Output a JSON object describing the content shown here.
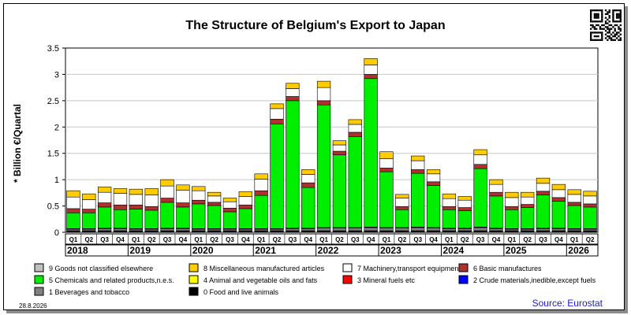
{
  "chart_data": {
    "type": "bar",
    "stacked": true,
    "title": "The Structure of Belgium's Export to Japan",
    "ylabel": "* Billion €/Quartal",
    "ylim": [
      0,
      3.5
    ],
    "yticks": [
      "0",
      "0.5",
      "1",
      "1.5",
      "2",
      "2.5",
      "3",
      "3.5"
    ],
    "grid": true,
    "legend_position": "bottom",
    "quarters": [
      "Q1",
      "Q2",
      "Q3",
      "Q4",
      "Q1",
      "Q2",
      "Q3",
      "Q4",
      "Q1",
      "Q2",
      "Q3",
      "Q4",
      "Q1",
      "Q2",
      "Q3",
      "Q4",
      "Q1",
      "Q2",
      "Q3",
      "Q4",
      "Q1",
      "Q2",
      "Q3",
      "Q4",
      "Q1",
      "Q2",
      "Q3",
      "Q4",
      "Q1",
      "Q2",
      "Q3",
      "Q4",
      "Q1",
      "Q2"
    ],
    "years": [
      "2018",
      "2019",
      "2020",
      "2021",
      "2022",
      "2023",
      "2024",
      "2025",
      "2026"
    ],
    "series": [
      {
        "name": "0 Food and live animals",
        "color": "#000000",
        "values": [
          0.03,
          0.03,
          0.03,
          0.03,
          0.03,
          0.03,
          0.03,
          0.03,
          0.03,
          0.03,
          0.03,
          0.03,
          0.03,
          0.03,
          0.03,
          0.03,
          0.03,
          0.03,
          0.03,
          0.03,
          0.03,
          0.03,
          0.03,
          0.03,
          0.03,
          0.03,
          0.03,
          0.03,
          0.03,
          0.03,
          0.03,
          0.03,
          0.03,
          0.03
        ]
      },
      {
        "name": "1 Beverages and tobacco",
        "color": "#808080",
        "values": [
          0.03,
          0.03,
          0.04,
          0.04,
          0.03,
          0.03,
          0.04,
          0.04,
          0.03,
          0.03,
          0.03,
          0.03,
          0.03,
          0.03,
          0.04,
          0.04,
          0.05,
          0.05,
          0.05,
          0.06,
          0.05,
          0.05,
          0.06,
          0.05,
          0.04,
          0.04,
          0.06,
          0.04,
          0.03,
          0.03,
          0.04,
          0.04,
          0.03,
          0.03
        ]
      },
      {
        "name": "2 Crude materials,inedible,except fuels",
        "color": "#0000ff",
        "values": [
          0.01,
          0.01,
          0.01,
          0.01,
          0.01,
          0.01,
          0.01,
          0.01,
          0.01,
          0.01,
          0.01,
          0.01,
          0.01,
          0.01,
          0.01,
          0.01,
          0.01,
          0.01,
          0.01,
          0.01,
          0.01,
          0.01,
          0.01,
          0.01,
          0.01,
          0.01,
          0.01,
          0.01,
          0.01,
          0.01,
          0.01,
          0.01,
          0.01,
          0.01
        ]
      },
      {
        "name": "3 Mineral fuels etc",
        "color": "#ff0000",
        "values": [
          0.0,
          0.0,
          0.0,
          0.0,
          0.0,
          0.0,
          0.0,
          0.0,
          0.0,
          0.0,
          0.0,
          0.0,
          0.0,
          0.0,
          0.0,
          0.0,
          0.0,
          0.0,
          0.0,
          0.0,
          0.0,
          0.0,
          0.0,
          0.0,
          0.0,
          0.0,
          0.0,
          0.0,
          0.0,
          0.0,
          0.0,
          0.0,
          0.0,
          0.0
        ]
      },
      {
        "name": "4 Animal and vegetable oils and fats",
        "color": "#ffff00",
        "values": [
          0.0,
          0.0,
          0.0,
          0.0,
          0.0,
          0.0,
          0.0,
          0.0,
          0.0,
          0.0,
          0.0,
          0.0,
          0.0,
          0.0,
          0.0,
          0.0,
          0.0,
          0.0,
          0.0,
          0.0,
          0.0,
          0.0,
          0.0,
          0.0,
          0.0,
          0.0,
          0.0,
          0.0,
          0.0,
          0.0,
          0.0,
          0.0,
          0.0,
          0.0
        ]
      },
      {
        "name": "5 Chemicals and related products,n.e.s.",
        "color": "#00ee00",
        "values": [
          0.3,
          0.3,
          0.4,
          0.35,
          0.37,
          0.35,
          0.49,
          0.4,
          0.47,
          0.44,
          0.32,
          0.38,
          0.63,
          1.99,
          2.42,
          0.77,
          2.33,
          1.38,
          1.73,
          2.82,
          1.06,
          0.34,
          1.02,
          0.8,
          0.35,
          0.33,
          1.11,
          0.61,
          0.36,
          0.4,
          0.63,
          0.51,
          0.44,
          0.41
        ]
      },
      {
        "name": "6 Basic manufactures",
        "color": "#b03030",
        "values": [
          0.08,
          0.07,
          0.08,
          0.09,
          0.08,
          0.07,
          0.08,
          0.08,
          0.07,
          0.06,
          0.07,
          0.07,
          0.09,
          0.09,
          0.08,
          0.09,
          0.08,
          0.07,
          0.08,
          0.08,
          0.07,
          0.06,
          0.07,
          0.07,
          0.06,
          0.06,
          0.08,
          0.07,
          0.06,
          0.06,
          0.07,
          0.07,
          0.06,
          0.06
        ]
      },
      {
        "name": "7 Machinery,transport equipment",
        "color": "#ffffff",
        "values": [
          0.22,
          0.18,
          0.2,
          0.22,
          0.2,
          0.22,
          0.23,
          0.24,
          0.18,
          0.12,
          0.12,
          0.16,
          0.22,
          0.2,
          0.15,
          0.16,
          0.25,
          0.12,
          0.15,
          0.18,
          0.18,
          0.16,
          0.17,
          0.15,
          0.15,
          0.14,
          0.18,
          0.15,
          0.17,
          0.14,
          0.15,
          0.15,
          0.15,
          0.15
        ]
      },
      {
        "name": "8 Miscellaneous manufactured articles",
        "color": "#ffcc00",
        "values": [
          0.12,
          0.11,
          0.1,
          0.09,
          0.1,
          0.12,
          0.12,
          0.1,
          0.08,
          0.07,
          0.07,
          0.09,
          0.1,
          0.09,
          0.1,
          0.09,
          0.12,
          0.08,
          0.09,
          0.12,
          0.13,
          0.07,
          0.09,
          0.08,
          0.09,
          0.07,
          0.1,
          0.09,
          0.1,
          0.09,
          0.1,
          0.1,
          0.09,
          0.09
        ]
      },
      {
        "name": "9 Goods not classified elsewhere",
        "color": "#c0c0c0",
        "values": [
          0.0,
          0.0,
          0.0,
          0.0,
          0.0,
          0.0,
          0.0,
          0.0,
          0.0,
          0.0,
          0.0,
          0.0,
          0.0,
          0.0,
          0.0,
          0.0,
          0.0,
          0.0,
          0.0,
          0.0,
          0.0,
          0.0,
          0.0,
          0.0,
          0.0,
          0.0,
          0.0,
          0.0,
          0.0,
          0.0,
          0.0,
          0.0,
          0.0,
          0.0
        ]
      }
    ],
    "legend_order": [
      9,
      8,
      7,
      6,
      5,
      4,
      3,
      2,
      1,
      0
    ]
  },
  "footer": {
    "date_stamp": "28.8.2026",
    "source": "Source: Eurostat"
  },
  "icons": {
    "corner": "qr-code-icon"
  }
}
